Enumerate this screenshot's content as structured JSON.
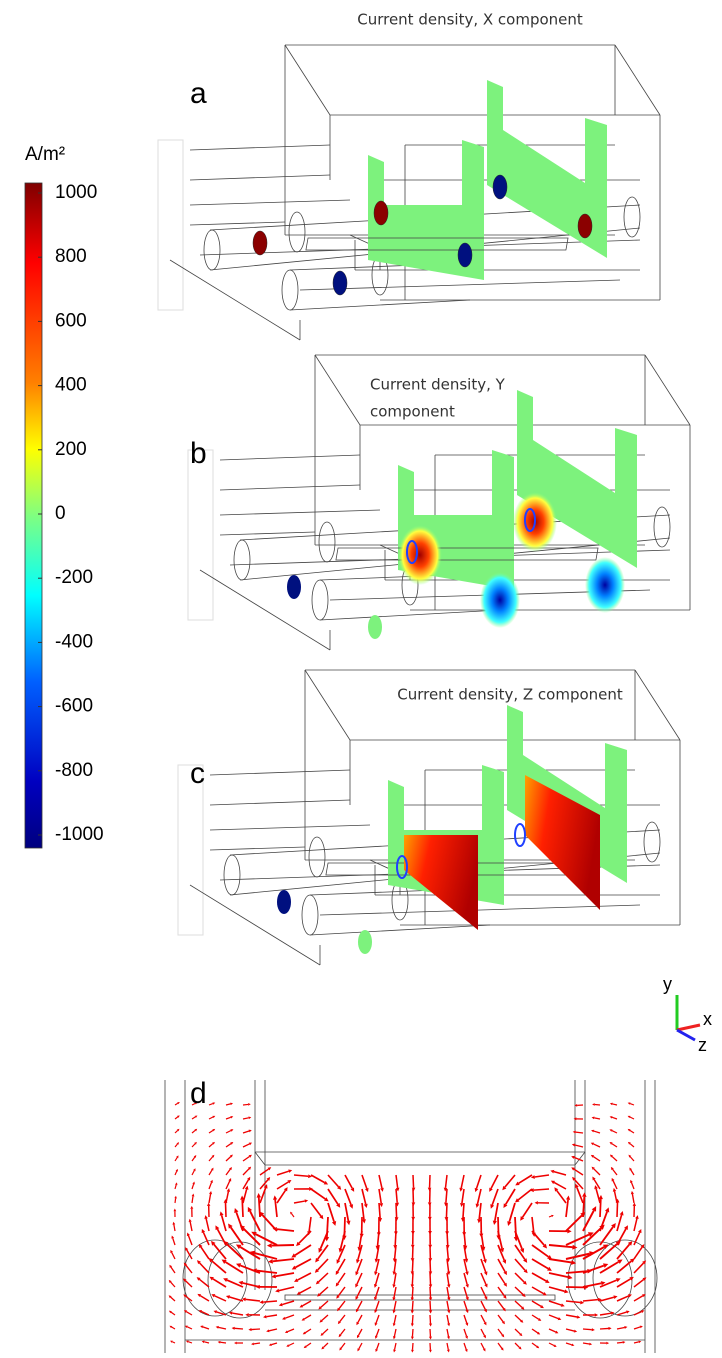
{
  "colorbar": {
    "unit": "A/m²",
    "ticks": [
      1000,
      800,
      600,
      400,
      200,
      0,
      -200,
      -400,
      -600,
      -800,
      -1000
    ]
  },
  "panels": [
    {
      "label": "a",
      "title": [
        "Current density, X component"
      ]
    },
    {
      "label": "b",
      "title": [
        "Current density, Y",
        "component"
      ]
    },
    {
      "label": "c",
      "title": [
        "Current density, Z component"
      ]
    },
    {
      "label": "d"
    }
  ],
  "axes": {
    "y": "y",
    "x": "x",
    "z": "z"
  }
}
